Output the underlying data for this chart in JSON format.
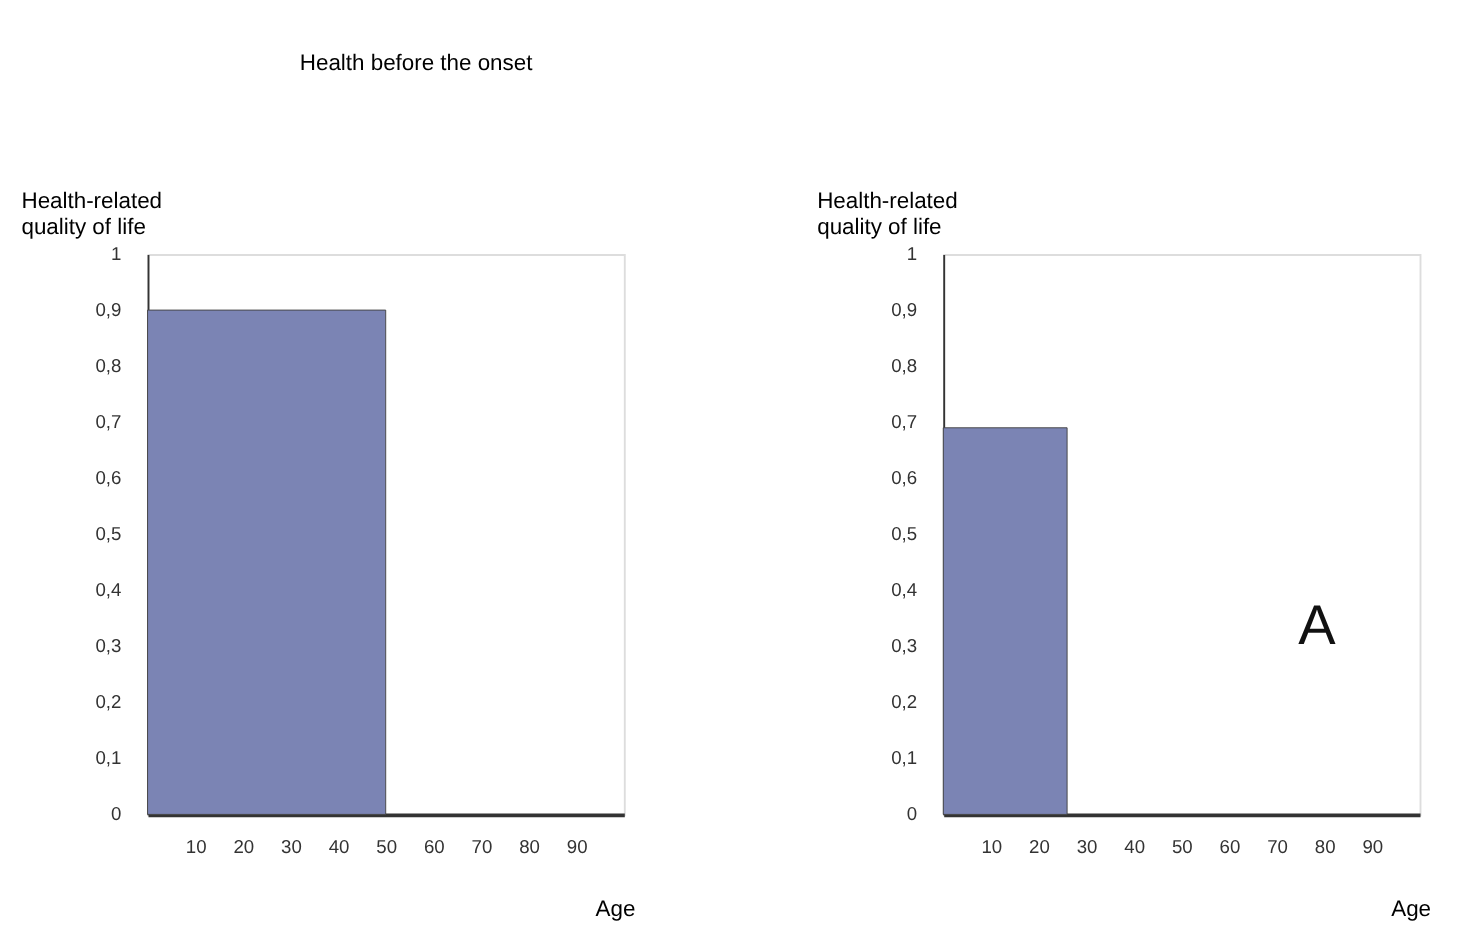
{
  "chart_data": [
    {
      "type": "histogram",
      "title": "Health before the onset",
      "ylabel": "Health-related quality of life",
      "xlabel": "Age",
      "bins": [
        0,
        50
      ],
      "values": [
        0.9
      ],
      "color": "#7b84b4",
      "xlim": [
        0,
        100
      ],
      "ylim": [
        0,
        1
      ],
      "xticks": [
        10,
        20,
        30,
        40,
        50,
        60,
        70,
        80,
        90
      ],
      "yticks": [
        0,
        {
          "value": 0.1,
          "label": "0,1"
        },
        {
          "value": 0.2,
          "label": "0,2"
        },
        {
          "value": 0.3,
          "label": "0,3"
        },
        {
          "value": 0.4,
          "label": "0,4"
        },
        {
          "value": 0.5,
          "label": "0,5"
        },
        {
          "value": 0.6,
          "label": "0,6"
        },
        {
          "value": 0.7,
          "label": "0,7"
        },
        {
          "value": 0.8,
          "label": "0,8"
        },
        {
          "value": 0.9,
          "label": "0,9"
        },
        1
      ],
      "grid": false
    },
    {
      "type": "histogram",
      "ylabel": "Health-related quality of life",
      "xlabel": "Age",
      "bins": [
        0,
        26
      ],
      "values": [
        0.69
      ],
      "color": "#7b84b4",
      "xlim": [
        0,
        100
      ],
      "ylim": [
        0,
        1
      ],
      "xticks": [
        10,
        20,
        30,
        40,
        50,
        60,
        70,
        80,
        90
      ],
      "yticks": [
        0,
        {
          "value": 0.1,
          "label": "0,1"
        },
        {
          "value": 0.2,
          "label": "0,2"
        },
        {
          "value": 0.3,
          "label": "0,3"
        },
        {
          "value": 0.4,
          "label": "0,4"
        },
        {
          "value": 0.5,
          "label": "0,5"
        },
        {
          "value": 0.6,
          "label": "0,6"
        },
        {
          "value": 0.7,
          "label": "0,7"
        },
        {
          "value": 0.8,
          "label": "0,8"
        },
        {
          "value": 0.9,
          "label": "0,9"
        },
        1
      ],
      "grid": false,
      "annotations": [
        "A"
      ]
    }
  ]
}
